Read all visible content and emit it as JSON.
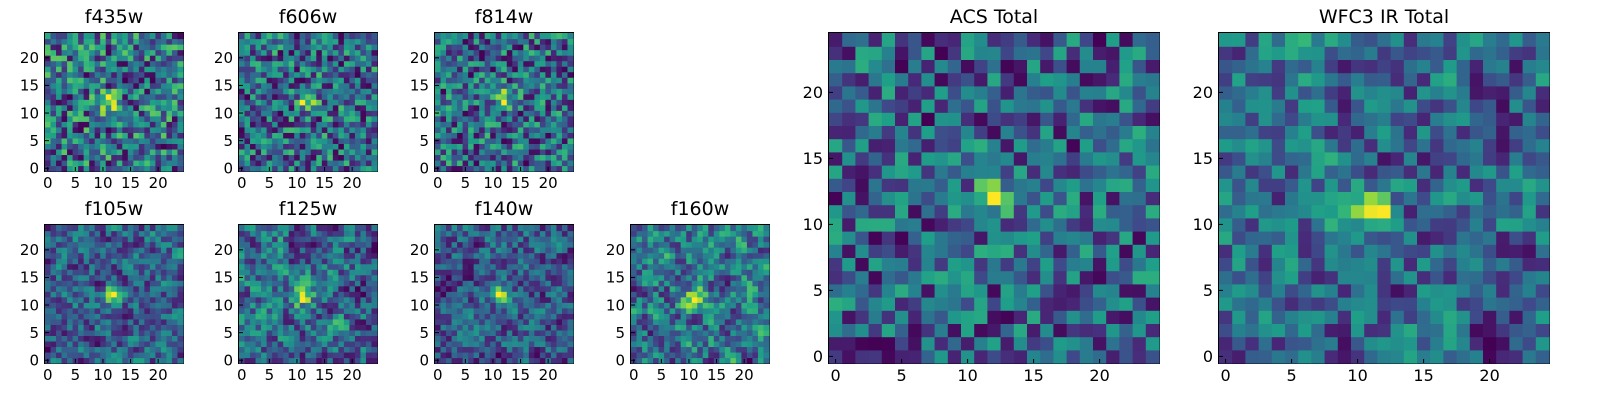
{
  "colormap": "viridis",
  "chart_data": [
    {
      "type": "heatmap",
      "title": "f435w",
      "grid": [
        25,
        25
      ],
      "xticks": [
        0,
        5,
        10,
        15,
        20
      ],
      "yticks": [
        0,
        5,
        10,
        15,
        20
      ],
      "xlim": [
        -0.5,
        24.5
      ],
      "ylim": [
        -0.5,
        24.5
      ],
      "peak": [
        11,
        12
      ],
      "seed": 11,
      "smooth": 0
    },
    {
      "type": "heatmap",
      "title": "f606w",
      "grid": [
        25,
        25
      ],
      "xticks": [
        0,
        5,
        10,
        15,
        20
      ],
      "yticks": [
        0,
        5,
        10,
        15,
        20
      ],
      "xlim": [
        -0.5,
        24.5
      ],
      "ylim": [
        -0.5,
        24.5
      ],
      "peak": [
        12,
        12
      ],
      "seed": 23,
      "smooth": 0
    },
    {
      "type": "heatmap",
      "title": "f814w",
      "grid": [
        25,
        25
      ],
      "xticks": [
        0,
        5,
        10,
        15,
        20
      ],
      "yticks": [
        0,
        5,
        10,
        15,
        20
      ],
      "xlim": [
        -0.5,
        24.5
      ],
      "ylim": [
        -0.5,
        24.5
      ],
      "peak": [
        12,
        13
      ],
      "seed": 37,
      "smooth": 0
    },
    {
      "type": "heatmap",
      "title": "f105w",
      "grid": [
        25,
        25
      ],
      "xticks": [
        0,
        5,
        10,
        15,
        20
      ],
      "yticks": [
        0,
        5,
        10,
        15,
        20
      ],
      "xlim": [
        -0.5,
        24.5
      ],
      "ylim": [
        -0.5,
        24.5
      ],
      "peak": [
        12,
        12
      ],
      "seed": 41,
      "smooth": 1
    },
    {
      "type": "heatmap",
      "title": "f125w",
      "grid": [
        25,
        25
      ],
      "xticks": [
        0,
        5,
        10,
        15,
        20
      ],
      "yticks": [
        0,
        5,
        10,
        15,
        20
      ],
      "xlim": [
        -0.5,
        24.5
      ],
      "ylim": [
        -0.5,
        24.5
      ],
      "peak": [
        11,
        12
      ],
      "seed": 53,
      "smooth": 1
    },
    {
      "type": "heatmap",
      "title": "f140w",
      "grid": [
        25,
        25
      ],
      "xticks": [
        0,
        5,
        10,
        15,
        20
      ],
      "yticks": [
        0,
        5,
        10,
        15,
        20
      ],
      "xlim": [
        -0.5,
        24.5
      ],
      "ylim": [
        -0.5,
        24.5
      ],
      "peak": [
        11,
        12
      ],
      "seed": 67,
      "smooth": 1
    },
    {
      "type": "heatmap",
      "title": "f160w",
      "grid": [
        25,
        25
      ],
      "xticks": [
        0,
        5,
        10,
        15,
        20
      ],
      "yticks": [
        0,
        5,
        10,
        15,
        20
      ],
      "xlim": [
        -0.5,
        24.5
      ],
      "ylim": [
        -0.5,
        24.5
      ],
      "peak": [
        11,
        11
      ],
      "seed": 79,
      "smooth": 1
    },
    {
      "type": "heatmap",
      "title": "ACS Total",
      "grid": [
        25,
        25
      ],
      "xticks": [
        0,
        5,
        10,
        15,
        20
      ],
      "yticks": [
        0,
        5,
        10,
        15,
        20
      ],
      "xlim": [
        -0.5,
        24.5
      ],
      "ylim": [
        -0.5,
        24.5
      ],
      "peak": [
        12,
        12
      ],
      "seed": 97,
      "smooth": 0
    },
    {
      "type": "heatmap",
      "title": "WFC3 IR Total",
      "grid": [
        25,
        25
      ],
      "xticks": [
        0,
        5,
        10,
        15,
        20
      ],
      "yticks": [
        0,
        5,
        10,
        15,
        20
      ],
      "xlim": [
        -0.5,
        24.5
      ],
      "ylim": [
        -0.5,
        24.5
      ],
      "peak": [
        11,
        11
      ],
      "seed": 131,
      "smooth": 1
    }
  ]
}
